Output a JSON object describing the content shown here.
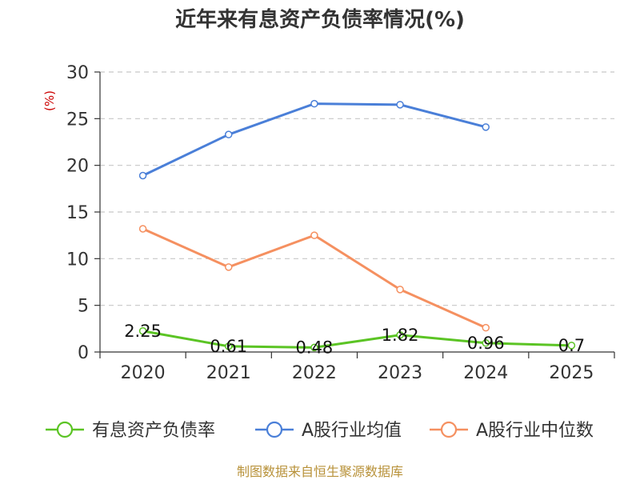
{
  "chart_data": {
    "type": "line",
    "title": "近年来有息资产负债率情况(%)",
    "ylabel": "(%)",
    "xlabel": "",
    "categories": [
      "2020",
      "2021",
      "2022",
      "2023",
      "2024",
      "2025"
    ],
    "ylim": [
      0,
      30
    ],
    "yticks": [
      0,
      5,
      10,
      15,
      20,
      25,
      30
    ],
    "grid": true,
    "legend_position": "bottom",
    "series": [
      {
        "name": "有息资产负债率",
        "color": "#5bc424",
        "values": [
          2.25,
          0.61,
          0.48,
          1.82,
          0.96,
          0.7
        ],
        "labels": [
          "2.25",
          "0.61",
          "0.48",
          "1.82",
          "0.96",
          "0.7"
        ]
      },
      {
        "name": "A股行业均值",
        "color": "#4a7fd8",
        "values": [
          18.9,
          23.3,
          26.6,
          26.5,
          24.1,
          null
        ]
      },
      {
        "name": "A股行业中位数",
        "color": "#f59060",
        "values": [
          13.2,
          9.1,
          12.5,
          6.7,
          2.6,
          null
        ]
      }
    ],
    "source": "制图数据来自恒生聚源数据库"
  }
}
